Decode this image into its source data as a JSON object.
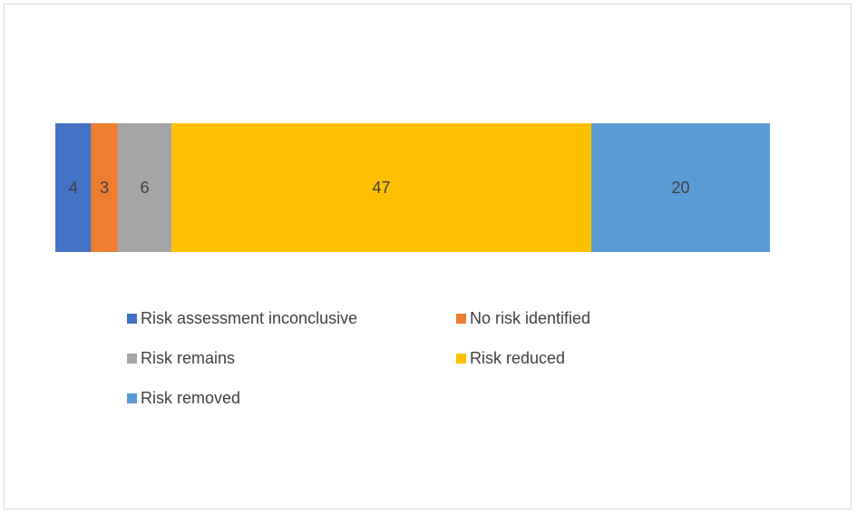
{
  "chart_data": {
    "type": "bar",
    "orientation": "horizontal-stacked",
    "categories": [
      ""
    ],
    "series": [
      {
        "name": "Risk assessment inconclusive",
        "values": [
          4
        ],
        "color": "#4472c4"
      },
      {
        "name": "No risk identified",
        "values": [
          3
        ],
        "color": "#ed7d31"
      },
      {
        "name": "Risk remains",
        "values": [
          6
        ],
        "color": "#a5a5a5"
      },
      {
        "name": "Risk reduced",
        "values": [
          47
        ],
        "color": "#ffc000"
      },
      {
        "name": "Risk removed",
        "values": [
          20
        ],
        "color": "#5b9bd5"
      }
    ],
    "data_labels": [
      "4",
      "3",
      "6",
      "47",
      "20"
    ],
    "title": "",
    "xlabel": "",
    "ylabel": "",
    "grid": false,
    "legend_placement": "bottom"
  }
}
